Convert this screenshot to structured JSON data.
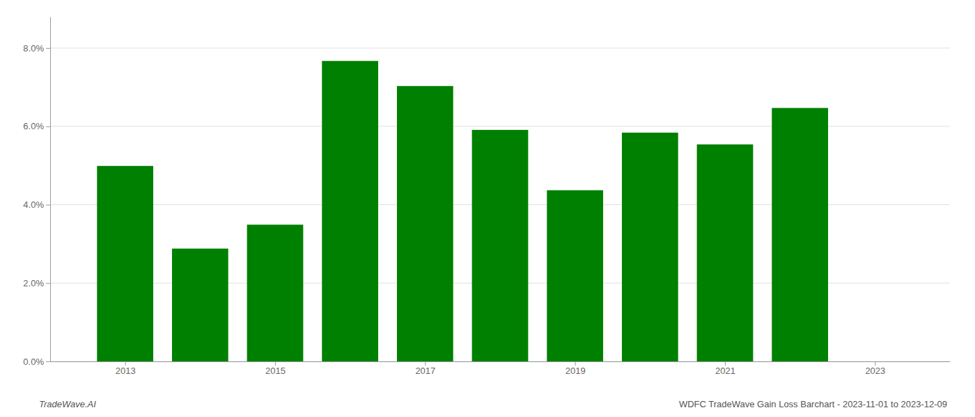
{
  "chart_data": {
    "type": "bar",
    "x": [
      2013,
      2014,
      2015,
      2016,
      2017,
      2018,
      2019,
      2020,
      2021,
      2022
    ],
    "values": [
      0.0499,
      0.0288,
      0.0349,
      0.0767,
      0.0703,
      0.0591,
      0.0437,
      0.0584,
      0.0554,
      0.0647
    ],
    "color": "#008000",
    "xlim": [
      2012.0,
      2024.0
    ],
    "xticks": [
      2013,
      2015,
      2017,
      2019,
      2021,
      2023
    ],
    "ylim": [
      0,
      0.088
    ],
    "yticks": [
      {
        "value": 0.0,
        "label": "0.0%"
      },
      {
        "value": 0.02,
        "label": "2.0%"
      },
      {
        "value": 0.04,
        "label": "4.0%"
      },
      {
        "value": 0.06,
        "label": "6.0%"
      },
      {
        "value": 0.08,
        "label": "8.0%"
      }
    ],
    "grid": true,
    "annotations": [
      "TradeWave.AI",
      "WDFC TradeWave Gain Loss Barchart - 2023-11-01 to 2023-12-09"
    ]
  }
}
